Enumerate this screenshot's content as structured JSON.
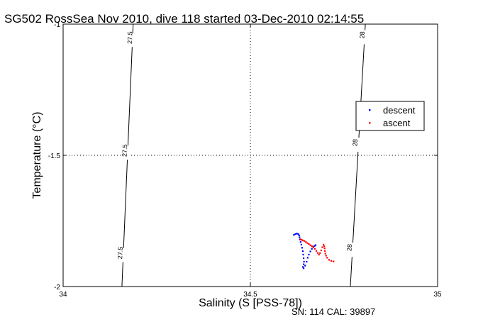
{
  "chart_data": {
    "type": "scatter",
    "title": "SG502 RossSea Nov 2010, dive 118 started 03-Dec-2010 02:14:55",
    "xlabel": "Salinity (S [PSS-78])",
    "ylabel": "Temperature (°C)",
    "xlim": [
      34,
      35
    ],
    "ylim": [
      -2,
      -1
    ],
    "x_ticks": [
      "34",
      "34.5",
      "35"
    ],
    "y_ticks": [
      "-1",
      "-1.5",
      "-2"
    ],
    "grid": true,
    "legend": {
      "placement": "right",
      "entries": [
        "descent",
        "ascent"
      ]
    },
    "contours": [
      {
        "label": "27.5",
        "points": [
          [
            34.187,
            -1.0
          ],
          [
            34.157,
            -2.0
          ]
        ],
        "label_positions": [
          [
            34.184,
            -1.06
          ],
          [
            34.17,
            -1.49
          ],
          [
            34.158,
            -1.88
          ]
        ]
      },
      {
        "label": "28",
        "points": [
          [
            34.807,
            -1.0
          ],
          [
            34.767,
            -2.0
          ]
        ],
        "label_positions": [
          [
            34.804,
            -1.05
          ],
          [
            34.785,
            -1.46
          ],
          [
            34.77,
            -1.86
          ]
        ]
      }
    ],
    "series": [
      {
        "name": "descent",
        "color": "#0000ff",
        "x": [
          34.616,
          34.62,
          34.624,
          34.628,
          34.63,
          34.631,
          34.632,
          34.634,
          34.636,
          34.638,
          34.64,
          34.641,
          34.642,
          34.643,
          34.642,
          34.64,
          34.642,
          34.646,
          34.65,
          34.653,
          34.656,
          34.66,
          34.664,
          34.668,
          34.671,
          34.674
        ],
        "y": [
          -1.803,
          -1.8,
          -1.798,
          -1.8,
          -1.805,
          -1.812,
          -1.82,
          -1.83,
          -1.84,
          -1.852,
          -1.865,
          -1.878,
          -1.892,
          -1.905,
          -1.915,
          -1.925,
          -1.93,
          -1.92,
          -1.905,
          -1.89,
          -1.878,
          -1.866,
          -1.856,
          -1.848,
          -1.845,
          -1.842
        ]
      },
      {
        "name": "ascent",
        "color": "#ff0000",
        "x": [
          34.722,
          34.716,
          34.71,
          34.705,
          34.702,
          34.7,
          34.699,
          34.698,
          34.697,
          34.695,
          34.692,
          34.689,
          34.686,
          34.683,
          34.68,
          34.676,
          34.672,
          34.668,
          34.664,
          34.66,
          34.656,
          34.652,
          34.648,
          34.644,
          34.64,
          34.637,
          34.634
        ],
        "y": [
          -1.904,
          -1.902,
          -1.898,
          -1.89,
          -1.882,
          -1.874,
          -1.864,
          -1.854,
          -1.846,
          -1.84,
          -1.85,
          -1.862,
          -1.872,
          -1.878,
          -1.872,
          -1.864,
          -1.856,
          -1.85,
          -1.846,
          -1.842,
          -1.838,
          -1.834,
          -1.83,
          -1.826,
          -1.824,
          -1.822,
          -1.82
        ]
      }
    ]
  },
  "footer": {
    "serial_text": "SN: 114  CAL: 39897"
  }
}
